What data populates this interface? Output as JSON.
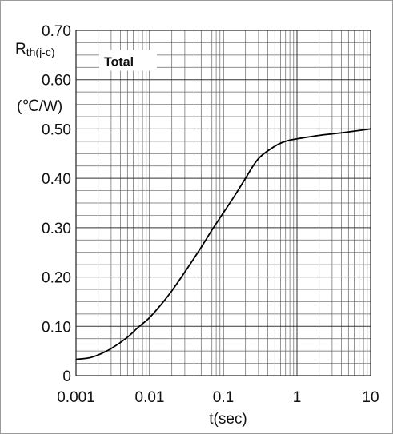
{
  "chart_data": {
    "type": "line",
    "x_scale": "log",
    "xlim": [
      0.001,
      10
    ],
    "ylim": [
      0,
      0.7
    ],
    "x_ticks": [
      "0.001",
      "0.01",
      "0.1",
      "1",
      "10"
    ],
    "y_ticks": [
      "0",
      "0.10",
      "0.20",
      "0.30",
      "0.40",
      "0.50",
      "0.60",
      "0.70"
    ],
    "xlabel": "t(sec)",
    "ylabel_main": "R",
    "ylabel_sub": "th(j-c)",
    "ylabel_unit": "(℃/W)",
    "grid": true,
    "legend": {
      "label": "Total",
      "placement": "top-left"
    },
    "series": [
      {
        "name": "Total",
        "points": [
          [
            0.001,
            0.033
          ],
          [
            0.0015,
            0.036
          ],
          [
            0.002,
            0.042
          ],
          [
            0.003,
            0.055
          ],
          [
            0.005,
            0.078
          ],
          [
            0.007,
            0.098
          ],
          [
            0.01,
            0.118
          ],
          [
            0.015,
            0.148
          ],
          [
            0.02,
            0.172
          ],
          [
            0.03,
            0.21
          ],
          [
            0.05,
            0.26
          ],
          [
            0.07,
            0.295
          ],
          [
            0.1,
            0.33
          ],
          [
            0.15,
            0.37
          ],
          [
            0.2,
            0.4
          ],
          [
            0.3,
            0.44
          ],
          [
            0.5,
            0.465
          ],
          [
            0.7,
            0.475
          ],
          [
            1,
            0.48
          ],
          [
            2,
            0.487
          ],
          [
            3,
            0.49
          ],
          [
            5,
            0.494
          ],
          [
            10,
            0.5
          ]
        ]
      }
    ]
  }
}
